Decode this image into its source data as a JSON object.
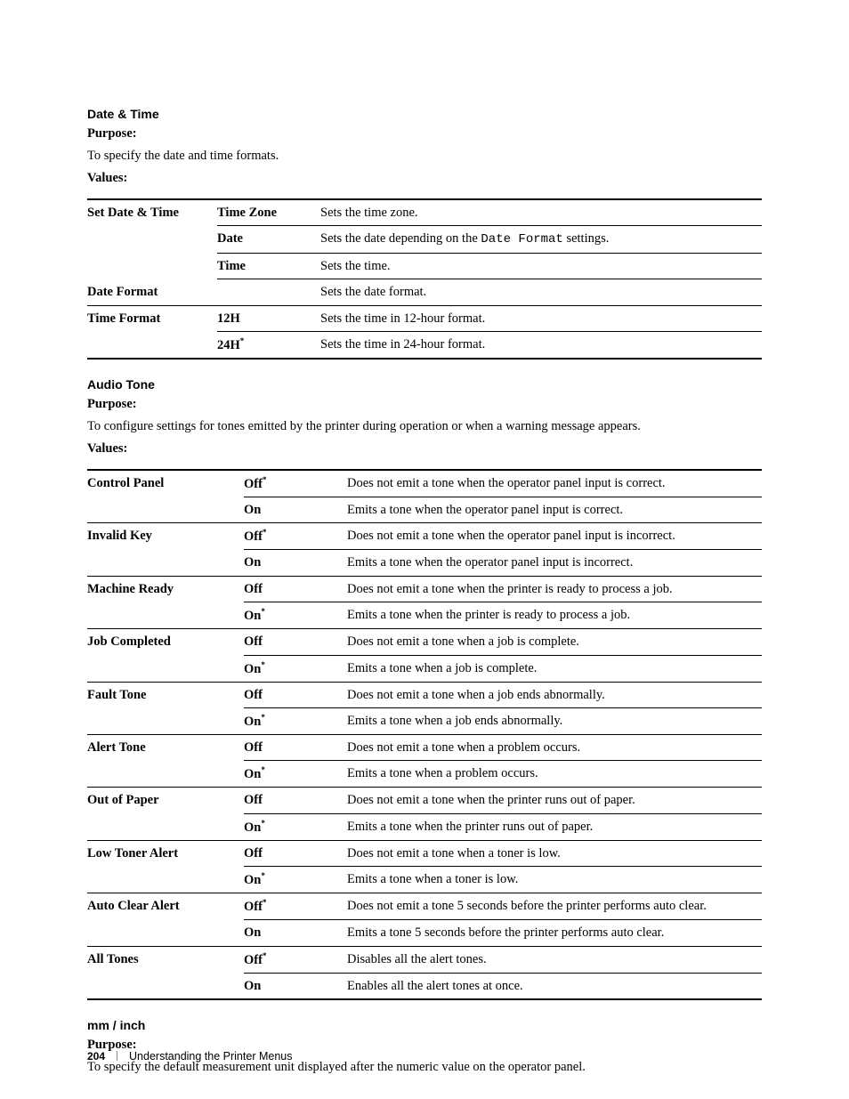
{
  "sections": {
    "dateTime": {
      "heading": "Date & Time",
      "purposeLabel": "Purpose:",
      "purposeText": "To specify the date and time formats.",
      "valuesLabel": "Values:"
    },
    "audioTone": {
      "heading": "Audio Tone",
      "purposeLabel": "Purpose:",
      "purposeText": "To configure settings for tones emitted by the printer during operation or when a warning message appears.",
      "valuesLabel": "Values:"
    },
    "mmInch": {
      "heading": "mm / inch",
      "purposeLabel": "Purpose:",
      "purposeText": "To specify the default measurement unit displayed after the numeric value on the operator panel."
    }
  },
  "table1": {
    "rows": [
      {
        "c1": "Set Date & Time",
        "c2": "Time Zone",
        "c3pre": "Sets the time zone.",
        "c3code": "",
        "c3post": ""
      },
      {
        "c1": "",
        "c2": "Date",
        "c3pre": "Sets the date depending on the ",
        "c3code": "Date Format",
        "c3post": " settings."
      },
      {
        "c1": "",
        "c2": "Time",
        "c3pre": "Sets the time.",
        "c3code": "",
        "c3post": ""
      },
      {
        "c1": "Date Format",
        "c2": "",
        "c3pre": "Sets the date format.",
        "c3code": "",
        "c3post": ""
      },
      {
        "c1": "Time Format",
        "c2": "12H",
        "c3pre": "Sets the time in 12-hour format.",
        "c3code": "",
        "c3post": ""
      },
      {
        "c1": "",
        "c2": "24H",
        "c2sup": "*",
        "c3pre": "Sets the time in 24-hour format.",
        "c3code": "",
        "c3post": ""
      }
    ]
  },
  "table2": {
    "rows": [
      {
        "c1": "Control Panel",
        "c2": "Off",
        "c2sup": "*",
        "c3": "Does not emit a tone when the operator panel input is correct."
      },
      {
        "c1": "",
        "c2": "On",
        "c3": "Emits a tone when the operator panel input is correct."
      },
      {
        "c1": "Invalid Key",
        "c2": "Off",
        "c2sup": "*",
        "c3": "Does not emit a tone when the operator panel input is incorrect."
      },
      {
        "c1": "",
        "c2": "On",
        "c3": "Emits a tone when the operator panel input is incorrect."
      },
      {
        "c1": "Machine Ready",
        "c2": "Off",
        "c3": "Does not emit a tone when the printer is ready to process a job."
      },
      {
        "c1": "",
        "c2": "On",
        "c2sup": "*",
        "c3": "Emits a tone when the printer is ready to process a job."
      },
      {
        "c1": "Job Completed",
        "c2": "Off",
        "c3": "Does not emit a tone when a job is complete."
      },
      {
        "c1": "",
        "c2": "On",
        "c2sup": "*",
        "c3": "Emits a tone when a job is complete."
      },
      {
        "c1": "Fault Tone",
        "c2": "Off",
        "c3": "Does not emit a tone when a job ends abnormally."
      },
      {
        "c1": "",
        "c2": "On",
        "c2sup": "*",
        "c3": "Emits a tone when a job ends abnormally."
      },
      {
        "c1": "Alert Tone",
        "c2": "Off",
        "c3": "Does not emit a tone when a problem occurs."
      },
      {
        "c1": "",
        "c2": "On",
        "c2sup": "*",
        "c3": "Emits a tone when a problem occurs."
      },
      {
        "c1": "Out of Paper",
        "c2": "Off",
        "c3": "Does not emit a tone when the printer runs out of paper."
      },
      {
        "c1": "",
        "c2": "On",
        "c2sup": "*",
        "c3": "Emits a tone when the printer runs out of paper."
      },
      {
        "c1": "Low Toner Alert",
        "c2": "Off",
        "c3": "Does not emit a tone when a toner is low."
      },
      {
        "c1": "",
        "c2": "On",
        "c2sup": "*",
        "c3": "Emits a tone when a toner is low."
      },
      {
        "c1": "Auto Clear Alert",
        "c2": "Off",
        "c2sup": "*",
        "c3": "Does not emit a tone 5 seconds before the printer performs auto clear."
      },
      {
        "c1": "",
        "c2": "On",
        "c3": "Emits a tone 5 seconds before the printer performs auto clear."
      },
      {
        "c1": "All Tones",
        "c2": "Off",
        "c2sup": "*",
        "c3": "Disables all the alert tones."
      },
      {
        "c1": "",
        "c2": "On",
        "c3": "Enables all the alert tones at once."
      }
    ]
  },
  "footer": {
    "page": "204",
    "chapter": "Understanding the Printer Menus"
  }
}
